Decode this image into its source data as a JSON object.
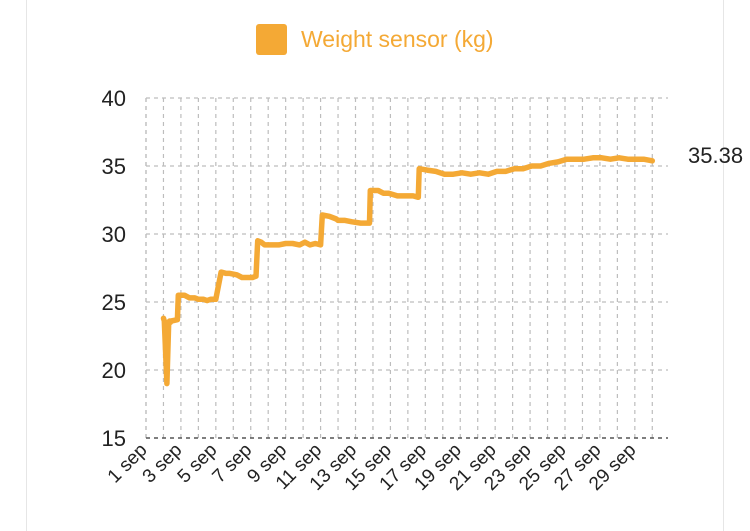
{
  "legend": {
    "label": "Weight sensor (kg)"
  },
  "colors": {
    "series": "#f4a935",
    "grid": "#bdbdbd",
    "axis": "#555555",
    "text": "#222222",
    "legend_text": "#f4a935"
  },
  "chart_data": {
    "type": "line",
    "series": [
      {
        "name": "Weight sensor (kg)",
        "x": [
          2.0,
          2.05,
          2.2,
          2.3,
          2.35,
          2.4,
          2.45,
          2.8,
          2.85,
          3.0,
          3.2,
          3.5,
          3.8,
          4.0,
          4.3,
          4.5,
          4.7,
          5.0,
          5.3,
          5.6,
          5.65,
          5.8,
          6.2,
          6.5,
          6.8,
          7.1,
          7.3,
          7.4,
          7.6,
          7.8,
          8.2,
          8.6,
          9.0,
          9.4,
          9.8,
          10.1,
          10.4,
          10.7,
          11.0,
          11.1,
          11.5,
          11.9,
          12.0,
          12.4,
          12.8,
          13.3,
          13.8,
          13.85,
          14.3,
          14.6,
          14.9,
          15.4,
          15.9,
          16.3,
          16.6,
          16.65,
          17.1,
          17.6,
          18.1,
          18.6,
          19.1,
          19.6,
          20.1,
          20.6,
          21.1,
          21.6,
          22.1,
          22.6,
          23.1,
          23.6,
          24.1,
          24.6,
          25.1,
          25.6,
          26.1,
          26.6,
          27.1,
          27.6,
          28.1,
          28.6,
          29.1,
          29.5,
          30.0
        ],
        "y": [
          23.8,
          23.6,
          19.0,
          23.5,
          23.6,
          23.5,
          23.6,
          23.7,
          25.5,
          25.5,
          25.5,
          25.3,
          25.3,
          25.2,
          25.2,
          25.1,
          25.2,
          25.2,
          27.2,
          27.1,
          27.1,
          27.1,
          27.0,
          26.8,
          26.8,
          26.8,
          26.9,
          29.5,
          29.4,
          29.2,
          29.2,
          29.2,
          29.3,
          29.3,
          29.2,
          29.4,
          29.2,
          29.3,
          29.2,
          31.4,
          31.3,
          31.1,
          31.0,
          31.0,
          30.9,
          30.8,
          30.8,
          33.2,
          33.2,
          33.0,
          33.0,
          32.8,
          32.8,
          32.8,
          32.7,
          34.8,
          34.7,
          34.6,
          34.4,
          34.4,
          34.5,
          34.4,
          34.5,
          34.4,
          34.6,
          34.6,
          34.8,
          34.8,
          35.0,
          35.0,
          35.2,
          35.3,
          35.5,
          35.5,
          35.5,
          35.6,
          35.6,
          35.5,
          35.6,
          35.5,
          35.5,
          35.5,
          35.38
        ]
      }
    ],
    "xlim": [
      1,
      30.9
    ],
    "xticks": [
      1,
      3,
      5,
      7,
      9,
      11,
      13,
      15,
      17,
      19,
      21,
      23,
      25,
      27,
      29
    ],
    "xtick_labels": [
      "1 sep",
      "3 sep",
      "5 sep",
      "7 sep",
      "9 sep",
      "11 sep",
      "13 sep",
      "15 sep",
      "17 sep",
      "19 sep",
      "21 sep",
      "23 sep",
      "25 sep",
      "27 sep",
      "29 sep"
    ],
    "ylim": [
      15,
      40
    ],
    "yticks": [
      15,
      20,
      25,
      30,
      35,
      40
    ],
    "grid": true,
    "end_label": "35.38",
    "legend_position": "top-center"
  }
}
